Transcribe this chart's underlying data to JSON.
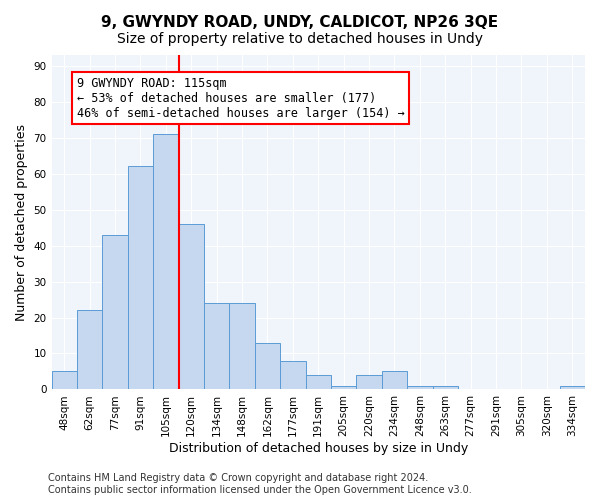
{
  "title": "9, GWYNDY ROAD, UNDY, CALDICOT, NP26 3QE",
  "subtitle": "Size of property relative to detached houses in Undy",
  "xlabel": "Distribution of detached houses by size in Undy",
  "ylabel": "Number of detached properties",
  "categories": [
    "48sqm",
    "62sqm",
    "77sqm",
    "91sqm",
    "105sqm",
    "120sqm",
    "134sqm",
    "148sqm",
    "162sqm",
    "177sqm",
    "191sqm",
    "205sqm",
    "220sqm",
    "234sqm",
    "248sqm",
    "263sqm",
    "277sqm",
    "291sqm",
    "305sqm",
    "320sqm",
    "334sqm"
  ],
  "values": [
    5,
    22,
    43,
    62,
    71,
    46,
    24,
    24,
    13,
    8,
    4,
    1,
    4,
    5,
    1,
    1,
    0,
    0,
    0,
    0,
    1
  ],
  "bar_color": "#c5d8f0",
  "bar_edge_color": "#5b9bd5",
  "vline_x": 4.5,
  "vline_color": "red",
  "annotation_text": "9 GWYNDY ROAD: 115sqm\n← 53% of detached houses are smaller (177)\n46% of semi-detached houses are larger (154) →",
  "annotation_box_color": "white",
  "annotation_box_edge_color": "red",
  "ylim": [
    0,
    93
  ],
  "yticks": [
    0,
    10,
    20,
    30,
    40,
    50,
    60,
    70,
    80,
    90
  ],
  "footer": "Contains HM Land Registry data © Crown copyright and database right 2024.\nContains public sector information licensed under the Open Government Licence v3.0.",
  "background_color": "#f0f4fb",
  "grid_color": "#ffffff",
  "title_fontsize": 11,
  "subtitle_fontsize": 10,
  "axis_label_fontsize": 9,
  "tick_fontsize": 7.5,
  "annotation_fontsize": 8.5,
  "footer_fontsize": 7
}
